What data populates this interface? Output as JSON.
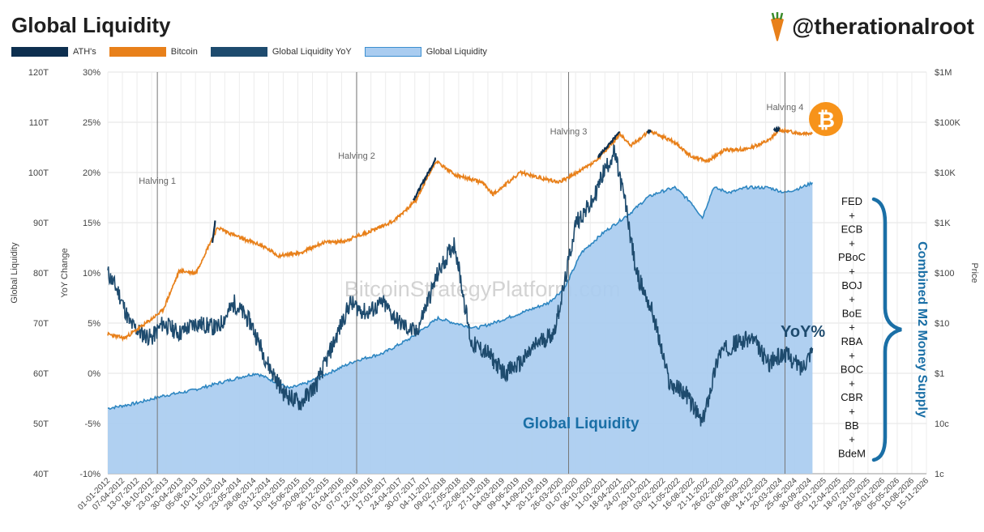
{
  "header": {
    "title": "Global Liquidity",
    "handle": "@therationalroot"
  },
  "legend": [
    {
      "label": "ATH's",
      "color": "#0d2f4f"
    },
    {
      "label": "Bitcoin",
      "color": "#e8801a"
    },
    {
      "label": "Global Liquidity YoY",
      "color": "#1e4b6e"
    },
    {
      "label": "Global Liquidity",
      "color": "#a9ccf0"
    }
  ],
  "watermark": "BitcoinStrategyPlatform.com",
  "annotations": {
    "yoy_label": "YoY%",
    "gl_label": "Global Liquidity",
    "m2_label": "Combined M2 Money Supply",
    "banks": [
      "FED",
      "+",
      "ECB",
      "+",
      "PBoC",
      "+",
      "BOJ",
      "+",
      "BoE",
      "+",
      "RBA",
      "+",
      "BOC",
      "+",
      "CBR",
      "+",
      "BB",
      "+",
      "BdeM"
    ]
  },
  "chart_data": {
    "type": "area",
    "y_left_label": "Global Liquidity",
    "y_mid_label": "YoY Change",
    "y_right_label": "Price",
    "y_left_ticks": [
      "120T",
      "110T",
      "100T",
      "90T",
      "80T",
      "70T",
      "60T",
      "50T",
      "40T"
    ],
    "y_mid_ticks": [
      "30%",
      "25%",
      "20%",
      "15%",
      "10%",
      "5%",
      "0%",
      "-5%",
      "-10%"
    ],
    "y_right_ticks": [
      "$1M",
      "$100K",
      "$10K",
      "$1K",
      "$100",
      "$10",
      "$1",
      "10c",
      "1c"
    ],
    "y_left_range": [
      40,
      120
    ],
    "y_mid_range": [
      -10,
      30
    ],
    "y_right_range_log10": [
      -2,
      6
    ],
    "x_range": [
      "01-01-2012",
      "15-11-2026"
    ],
    "x_ticks": [
      "01-01-2012",
      "07-04-2012",
      "13-07-2012",
      "18-10-2012",
      "23-01-2013",
      "30-04-2013",
      "05-08-2013",
      "10-11-2013",
      "15-02-2014",
      "23-05-2014",
      "28-08-2014",
      "03-12-2014",
      "10-03-2015",
      "15-06-2015",
      "20-09-2015",
      "26-12-2015",
      "01-04-2016",
      "07-07-2016",
      "12-10-2016",
      "17-01-2017",
      "24-04-2017",
      "30-07-2017",
      "04-11-2017",
      "09-02-2018",
      "17-05-2018",
      "22-08-2018",
      "27-11-2018",
      "04-03-2019",
      "09-06-2019",
      "14-09-2019",
      "20-12-2019",
      "26-03-2020",
      "01-07-2020",
      "06-10-2020",
      "11-01-2021",
      "18-04-2021",
      "24-07-2021",
      "29-10-2021",
      "03-02-2022",
      "11-05-2022",
      "16-08-2022",
      "21-11-2022",
      "26-02-2023",
      "03-06-2023",
      "08-09-2023",
      "14-12-2023",
      "20-03-2024",
      "25-06-2024",
      "30-09-2024",
      "05-01-2025",
      "12-04-2025",
      "18-07-2025",
      "23-10-2025",
      "28-01-2026",
      "05-05-2026",
      "10-08-2026",
      "15-11-2026"
    ],
    "halvings": [
      {
        "label": "Halving 1",
        "date": 2012.9
      },
      {
        "label": "Halving 2",
        "date": 2016.52
      },
      {
        "label": "Halving 3",
        "date": 2020.37
      },
      {
        "label": "Halving 4",
        "date": 2024.3
      }
    ],
    "series": [
      {
        "name": "Global Liquidity",
        "unit": "T",
        "x": [
          2012.0,
          2012.5,
          2013.0,
          2013.5,
          2014.0,
          2014.5,
          2014.7,
          2015.0,
          2015.3,
          2015.6,
          2016.0,
          2016.5,
          2017.0,
          2017.5,
          2018.0,
          2018.3,
          2018.7,
          2019.0,
          2019.5,
          2020.0,
          2020.3,
          2020.6,
          2021.0,
          2021.5,
          2021.8,
          2022.0,
          2022.3,
          2022.6,
          2022.8,
          2023.0,
          2023.3,
          2023.6,
          2024.0,
          2024.3,
          2024.6,
          2024.8
        ],
        "values": [
          53,
          54,
          55.5,
          56.5,
          58,
          59.5,
          60,
          58.5,
          57,
          58,
          60,
          62.5,
          64,
          67,
          71,
          70,
          69,
          70,
          72,
          74,
          77,
          84,
          88,
          92,
          95,
          96,
          97,
          94,
          91,
          97,
          96,
          97,
          97,
          96,
          97,
          98
        ]
      },
      {
        "name": "Global Liquidity YoY",
        "unit": "%",
        "x": [
          2012.0,
          2012.2,
          2012.4,
          2012.6,
          2012.8,
          2013.0,
          2013.3,
          2013.6,
          2014.0,
          2014.3,
          2014.6,
          2014.9,
          2015.2,
          2015.5,
          2015.8,
          2016.1,
          2016.4,
          2016.7,
          2017.0,
          2017.3,
          2017.6,
          2018.0,
          2018.3,
          2018.6,
          2018.9,
          2019.2,
          2019.5,
          2019.8,
          2020.1,
          2020.3,
          2020.5,
          2020.8,
          2021.0,
          2021.2,
          2021.4,
          2021.6,
          2021.9,
          2022.2,
          2022.5,
          2022.8,
          2023.1,
          2023.4,
          2023.7,
          2024.0,
          2024.3,
          2024.6,
          2024.8
        ],
        "values": [
          10,
          8,
          5,
          4,
          3.5,
          5,
          4,
          5,
          4.5,
          7,
          5,
          1,
          -2,
          -3,
          -1,
          3,
          7,
          6,
          7,
          5,
          4,
          10,
          13,
          3,
          2,
          0,
          1,
          3,
          4,
          9,
          15,
          17,
          20,
          22,
          17,
          10,
          6,
          -1,
          -2,
          -5,
          2,
          3,
          3.5,
          1,
          2,
          0.5,
          2.5
        ]
      },
      {
        "name": "Bitcoin",
        "unit": "USD",
        "x": [
          2012.0,
          2012.3,
          2012.7,
          2013.0,
          2013.3,
          2013.6,
          2013.9,
          2014.0,
          2014.4,
          2014.8,
          2015.1,
          2015.5,
          2015.9,
          2016.3,
          2016.8,
          2017.2,
          2017.6,
          2017.96,
          2018.3,
          2018.8,
          2019.0,
          2019.5,
          2019.9,
          2020.2,
          2020.5,
          2020.9,
          2021.3,
          2021.5,
          2021.85,
          2022.3,
          2022.6,
          2022.9,
          2023.2,
          2023.6,
          2024.0,
          2024.2,
          2024.6,
          2024.8
        ],
        "values": [
          6,
          5,
          10,
          18,
          110,
          100,
          500,
          800,
          500,
          350,
          220,
          250,
          400,
          430,
          700,
          1100,
          2800,
          17000,
          9000,
          6300,
          3700,
          10000,
          7500,
          6500,
          9500,
          18000,
          58000,
          35000,
          67000,
          40000,
          21000,
          17000,
          28000,
          29000,
          43000,
          70000,
          60000,
          62000
        ]
      },
      {
        "name": "ATH's",
        "unit": "USD",
        "segments": [
          {
            "x": [
              2013.9,
              2013.95
            ],
            "values": [
              400,
              1100
            ]
          },
          {
            "x": [
              2017.55,
              2017.96
            ],
            "values": [
              2800,
              19000
            ]
          },
          {
            "x": [
              2020.9,
              2021.3
            ],
            "values": [
              20000,
              64000
            ]
          },
          {
            "x": [
              2021.8,
              2021.87
            ],
            "values": [
              66000,
              68000
            ]
          },
          {
            "x": [
              2024.1,
              2024.2
            ],
            "values": [
              68000,
              73000
            ]
          }
        ]
      }
    ]
  }
}
